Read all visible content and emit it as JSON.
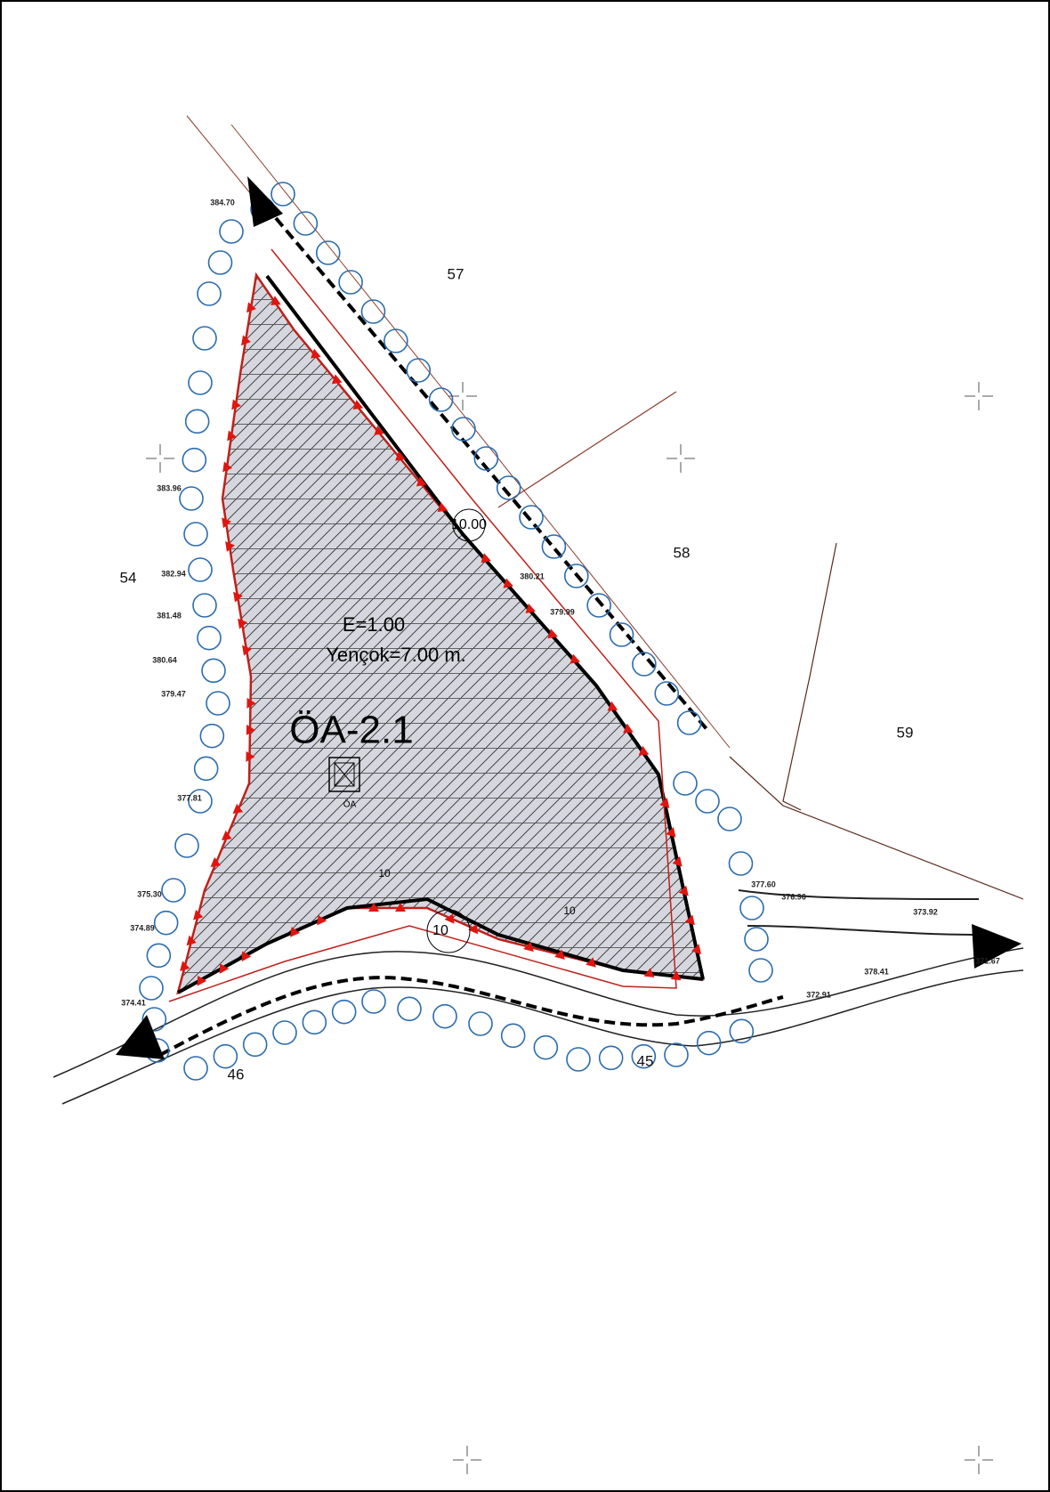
{
  "plan": {
    "id": "ÖA-2.1",
    "coefficient": "E=1.00",
    "max_height": "Yençok=7.00 m.",
    "symbol": "ÖA"
  },
  "parcel_numbers": [
    "57",
    "58",
    "59",
    "54",
    "45",
    "46"
  ],
  "contour_labels": [
    "10.00",
    "10",
    "10",
    "10"
  ],
  "elevations": [
    "384.70",
    "374.41",
    "371.67",
    "375.30",
    "374.89",
    "377.81",
    "379.47",
    "381.48",
    "382.94",
    "383.96",
    "380.64",
    "372.91",
    "378.41",
    "373.92",
    "379.99",
    "380.21",
    "377.60",
    "376.96"
  ]
}
